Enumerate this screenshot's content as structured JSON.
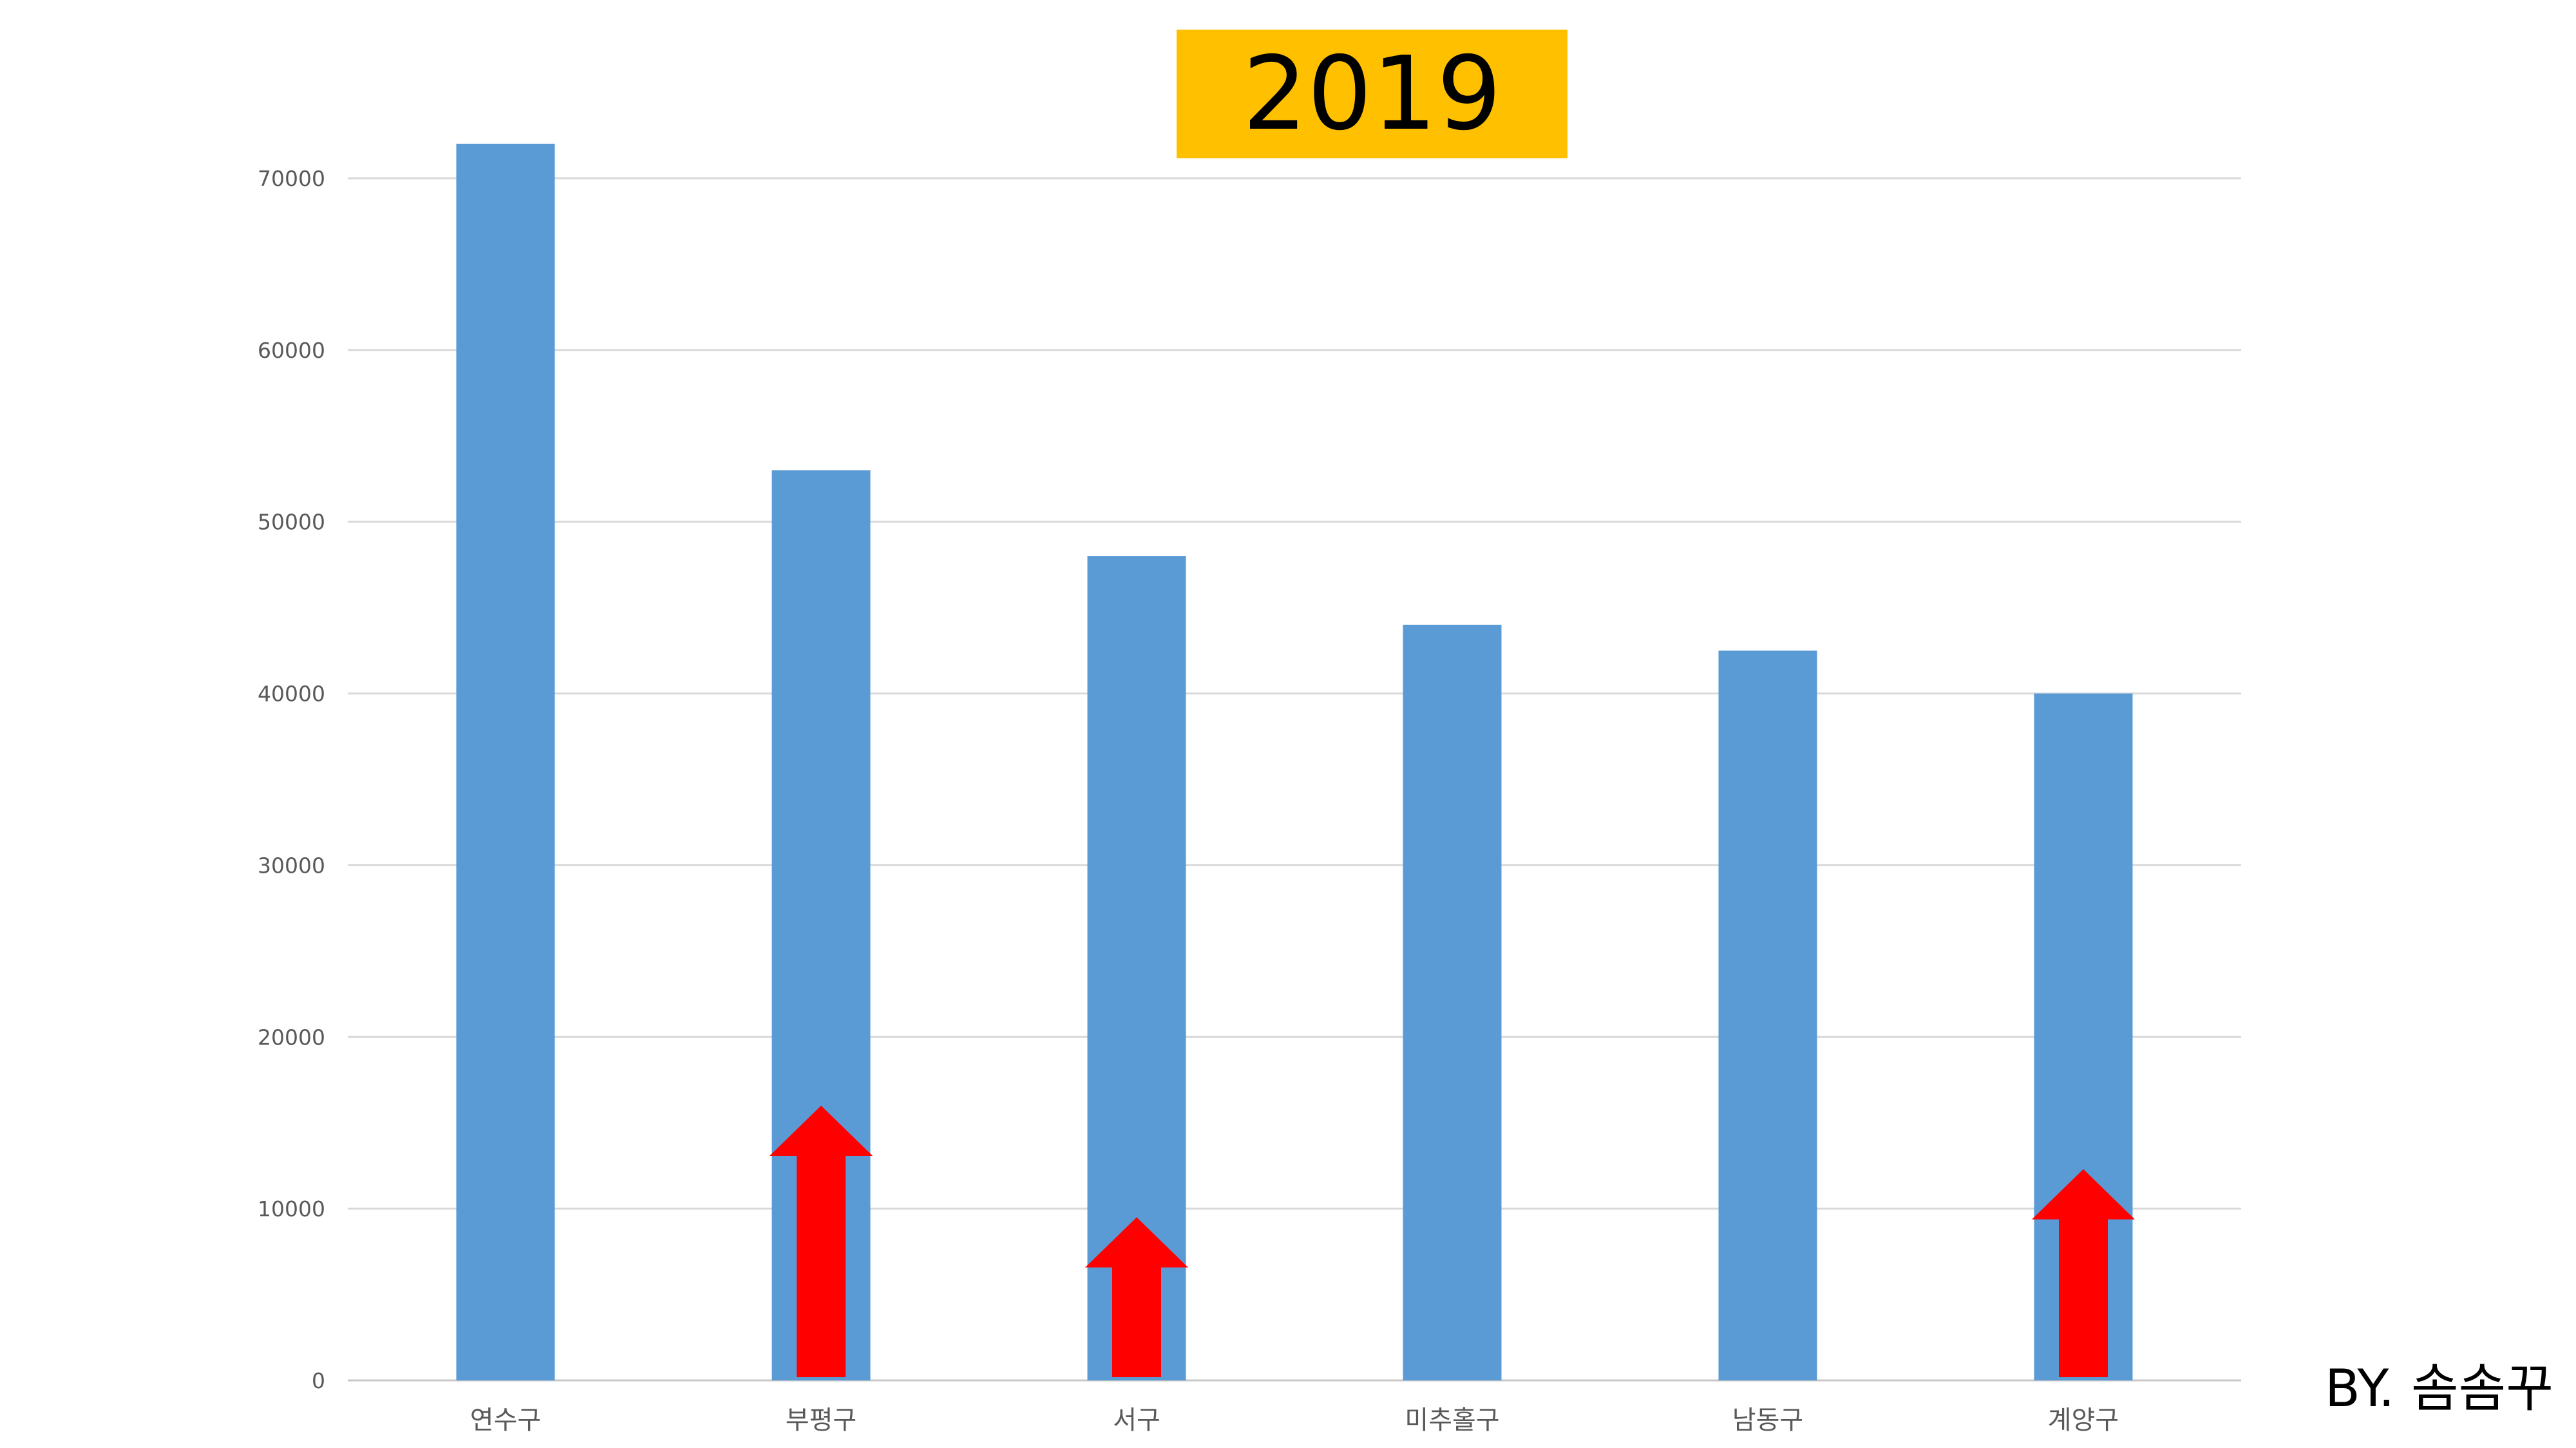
{
  "chart_data": {
    "type": "bar",
    "title": "2019",
    "xlabel": "",
    "ylabel": "",
    "categories": [
      "연수구",
      "부평구",
      "서구",
      "미추홀구",
      "남동구",
      "계양구"
    ],
    "values": [
      72000,
      53000,
      48000,
      44000,
      42500,
      40000
    ],
    "ylim": [
      0,
      70000
    ],
    "yticks": [
      0,
      10000,
      20000,
      30000,
      40000,
      50000,
      60000,
      70000
    ],
    "ytick_labels": [
      "0",
      "10000",
      "20000",
      "30000",
      "40000",
      "50000",
      "60000",
      "70000"
    ],
    "grid": true,
    "legend": "none",
    "bar_color": "#5B9BD5",
    "annotations": [
      {
        "type": "up-arrow",
        "category": "부평구",
        "from": 0,
        "to": 16000,
        "color": "#FF0000"
      },
      {
        "type": "up-arrow",
        "category": "서구",
        "from": 0,
        "to": 9500,
        "color": "#FF0000"
      },
      {
        "type": "up-arrow",
        "category": "계양구",
        "from": 0,
        "to": 12300,
        "color": "#FF0000"
      }
    ]
  },
  "title_bg_color": "#FFC000",
  "credit": "BY. 솜솜꾸"
}
